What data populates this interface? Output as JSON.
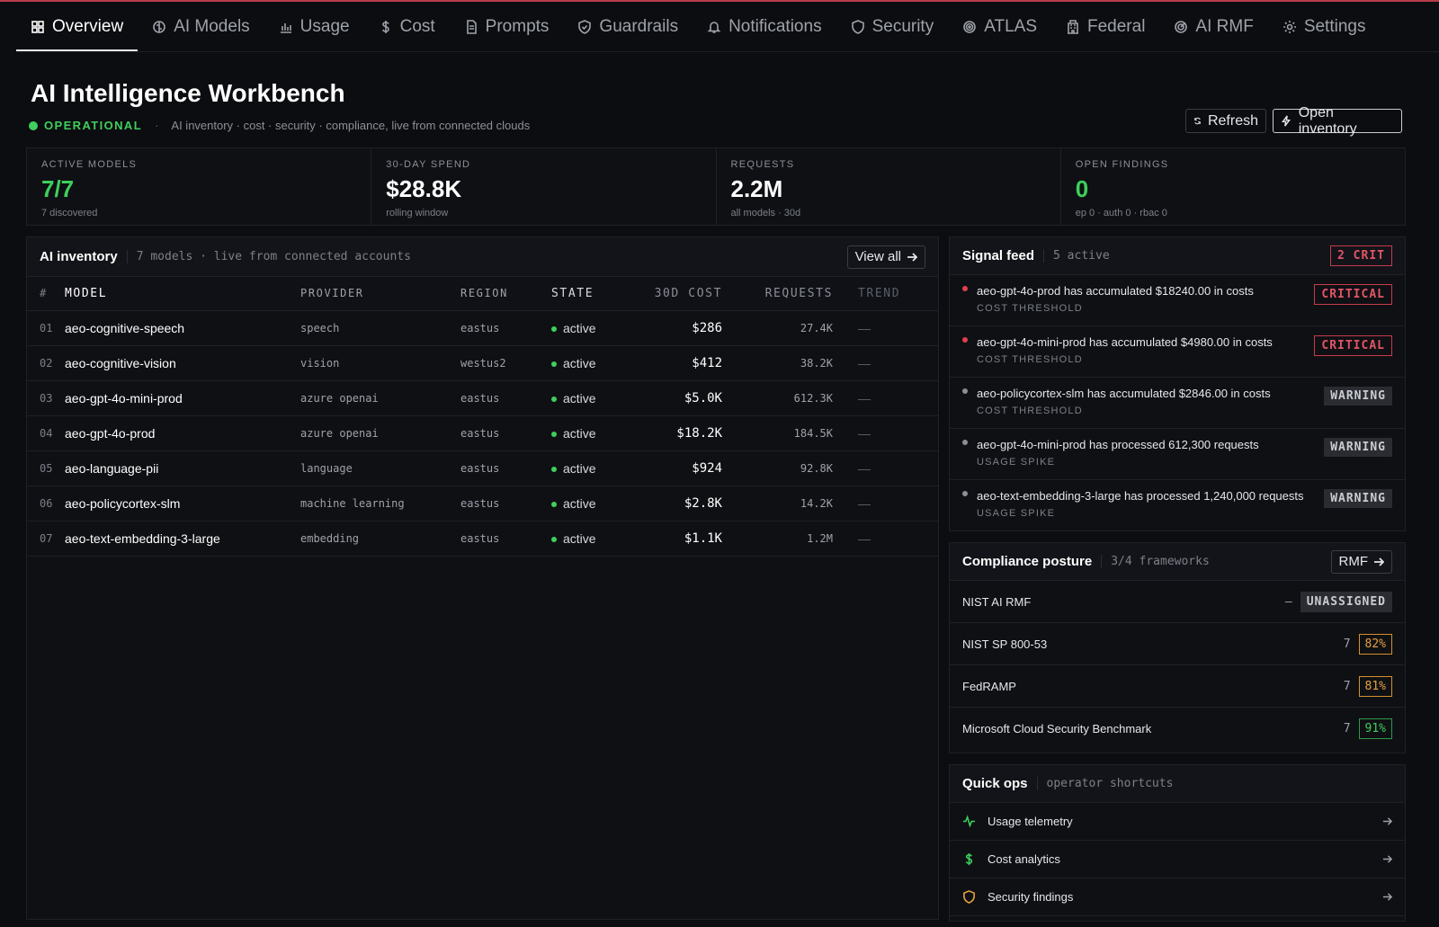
{
  "nav": {
    "tabs": [
      {
        "label": "Overview",
        "icon": "grid-icon"
      },
      {
        "label": "AI Models",
        "icon": "brain-icon"
      },
      {
        "label": "Usage",
        "icon": "bar-chart-icon"
      },
      {
        "label": "Cost",
        "icon": "dollar-icon"
      },
      {
        "label": "Prompts",
        "icon": "document-icon"
      },
      {
        "label": "Guardrails",
        "icon": "shield-check-icon"
      },
      {
        "label": "Notifications",
        "icon": "bell-icon"
      },
      {
        "label": "Security",
        "icon": "shield-icon"
      },
      {
        "label": "ATLAS",
        "icon": "target-icon"
      },
      {
        "label": "Federal",
        "icon": "building-icon"
      },
      {
        "label": "AI RMF",
        "icon": "radar-icon"
      },
      {
        "label": "Settings",
        "icon": "gear-icon"
      }
    ],
    "active_index": 0
  },
  "header": {
    "title": "AI Intelligence Workbench",
    "status": "OPERATIONAL",
    "separator": "·",
    "description": "AI inventory · cost · security · compliance, live from connected clouds",
    "refresh_label": "Refresh",
    "open_inventory_label": "Open inventory"
  },
  "kpis": [
    {
      "label": "ACTIVE MODELS",
      "value": "7/7",
      "sub": "7 discovered",
      "accent": "green"
    },
    {
      "label": "30-DAY SPEND",
      "value": "$28.8K",
      "sub": "rolling window",
      "accent": "white"
    },
    {
      "label": "REQUESTS",
      "value": "2.2M",
      "sub": "all models · 30d",
      "accent": "white"
    },
    {
      "label": "OPEN FINDINGS",
      "value": "0",
      "sub": "ep 0 · auth 0 · rbac 0",
      "accent": "green"
    }
  ],
  "inventory": {
    "title": "AI inventory",
    "subtitle": "7 models · live from connected accounts",
    "view_all_label": "View all",
    "columns": [
      "#",
      "MODEL",
      "PROVIDER",
      "REGION",
      "STATE",
      "30D COST",
      "REQUESTS",
      "TREND"
    ],
    "rows": [
      {
        "num": "01",
        "model": "aeo-cognitive-speech",
        "provider": "speech",
        "region": "eastus",
        "state": "active",
        "cost": "$286",
        "requests": "27.4K",
        "trend": "—"
      },
      {
        "num": "02",
        "model": "aeo-cognitive-vision",
        "provider": "vision",
        "region": "westus2",
        "state": "active",
        "cost": "$412",
        "requests": "38.2K",
        "trend": "—"
      },
      {
        "num": "03",
        "model": "aeo-gpt-4o-mini-prod",
        "provider": "azure openai",
        "region": "eastus",
        "state": "active",
        "cost": "$5.0K",
        "requests": "612.3K",
        "trend": "—"
      },
      {
        "num": "04",
        "model": "aeo-gpt-4o-prod",
        "provider": "azure openai",
        "region": "eastus",
        "state": "active",
        "cost": "$18.2K",
        "requests": "184.5K",
        "trend": "—"
      },
      {
        "num": "05",
        "model": "aeo-language-pii",
        "provider": "language",
        "region": "eastus",
        "state": "active",
        "cost": "$924",
        "requests": "92.8K",
        "trend": "—"
      },
      {
        "num": "06",
        "model": "aeo-policycortex-slm",
        "provider": "machine learning",
        "region": "eastus",
        "state": "active",
        "cost": "$2.8K",
        "requests": "14.2K",
        "trend": "—"
      },
      {
        "num": "07",
        "model": "aeo-text-embedding-3-large",
        "provider": "embedding",
        "region": "eastus",
        "state": "active",
        "cost": "$1.1K",
        "requests": "1.2M",
        "trend": "—"
      }
    ]
  },
  "signals": {
    "title": "Signal feed",
    "subtitle": "5 active",
    "badge": "2 CRIT",
    "items": [
      {
        "message": "aeo-gpt-4o-prod has accumulated $18240.00 in costs",
        "category": "COST THRESHOLD",
        "severity": "CRITICAL",
        "dot": "#e2404f"
      },
      {
        "message": "aeo-gpt-4o-mini-prod has accumulated $4980.00 in costs",
        "category": "COST THRESHOLD",
        "severity": "CRITICAL",
        "dot": "#e2404f"
      },
      {
        "message": "aeo-policycortex-slm has accumulated $2846.00 in costs",
        "category": "COST THRESHOLD",
        "severity": "WARNING",
        "dot": "#8b8f98"
      },
      {
        "message": "aeo-gpt-4o-mini-prod has processed 612,300 requests",
        "category": "USAGE SPIKE",
        "severity": "WARNING",
        "dot": "#8b8f98"
      },
      {
        "message": "aeo-text-embedding-3-large has processed 1,240,000 requests",
        "category": "USAGE SPIKE",
        "severity": "WARNING",
        "dot": "#8b8f98"
      }
    ]
  },
  "compliance": {
    "title": "Compliance posture",
    "subtitle": "3/4 frameworks",
    "rmf_label": "RMF",
    "rows": [
      {
        "name": "NIST AI RMF",
        "count": "—",
        "score": "UNASSIGNED",
        "tone": "none"
      },
      {
        "name": "NIST SP 800-53",
        "count": "7",
        "score": "82%",
        "tone": "orange"
      },
      {
        "name": "FedRAMP",
        "count": "7",
        "score": "81%",
        "tone": "orange"
      },
      {
        "name": "Microsoft Cloud Security Benchmark",
        "count": "7",
        "score": "91%",
        "tone": "green"
      }
    ]
  },
  "quick_ops": {
    "title": "Quick ops",
    "subtitle": "operator shortcuts",
    "items": [
      {
        "label": "Usage telemetry",
        "icon": "pulse-icon",
        "color": "#3ecf5c"
      },
      {
        "label": "Cost analytics",
        "icon": "dollar-icon",
        "color": "#3ecf5c"
      },
      {
        "label": "Security findings",
        "icon": "shield-icon",
        "color": "#e6a23c"
      }
    ]
  }
}
